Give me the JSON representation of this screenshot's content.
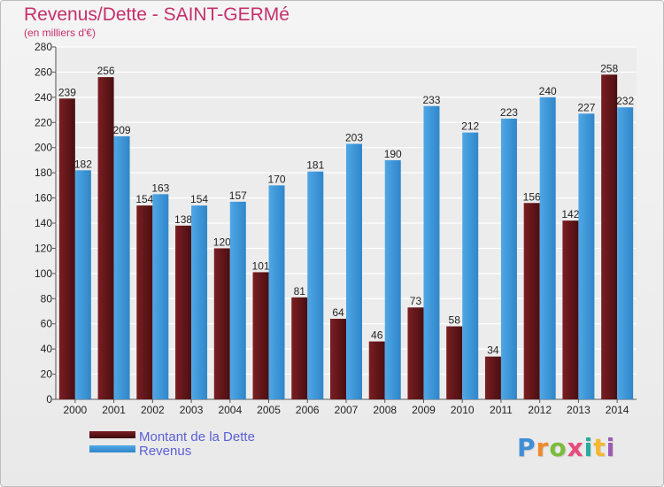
{
  "chart_data": {
    "type": "bar",
    "title": "Revenus/Dette - SAINT-GERMé",
    "subtitle": "(en milliers d'€)",
    "categories": [
      "2000",
      "2001",
      "2002",
      "2003",
      "2004",
      "2005",
      "2006",
      "2007",
      "2008",
      "2009",
      "2010",
      "2011",
      "2012",
      "2013",
      "2014"
    ],
    "series": [
      {
        "name": "Montant de la Dette",
        "color": "#7a1e22",
        "values": [
          239,
          256,
          154,
          138,
          120,
          101,
          81,
          64,
          46,
          73,
          58,
          34,
          156,
          142,
          258
        ]
      },
      {
        "name": "Revenus",
        "color": "#4fa7e6",
        "values": [
          182,
          209,
          163,
          154,
          157,
          170,
          181,
          203,
          190,
          233,
          212,
          223,
          240,
          227,
          232
        ]
      }
    ],
    "ylim": [
      0,
      280
    ],
    "yticks": [
      0,
      20,
      40,
      60,
      80,
      100,
      120,
      140,
      160,
      180,
      200,
      220,
      240,
      260,
      280
    ],
    "grid": true,
    "legend": "bottom-left"
  },
  "brand": {
    "letters": [
      "P",
      "r",
      "o",
      "x",
      "i",
      "t",
      "i"
    ],
    "colors": [
      "#3f8fd6",
      "#f0892c",
      "#7dbb3c",
      "#e94a7c",
      "#2aa9a0",
      "#f5b830",
      "#9b59b6"
    ]
  }
}
